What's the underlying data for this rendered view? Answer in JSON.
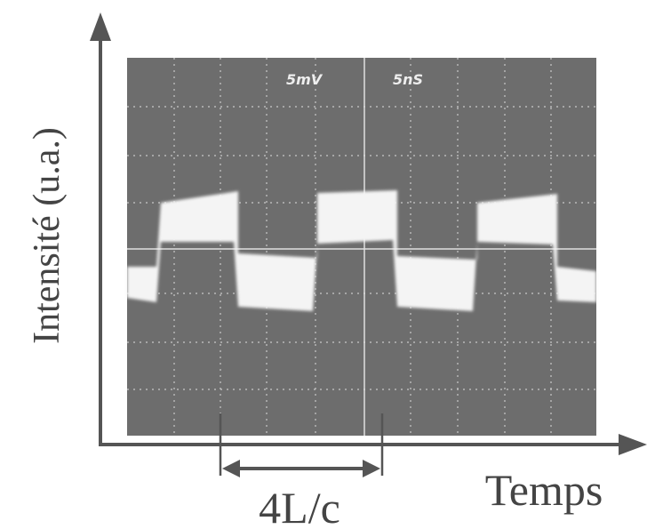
{
  "screen": {
    "volts_per_div": "5mV",
    "time_per_div": "5nS"
  },
  "axes": {
    "y_label": "Intensité (u.a.)",
    "x_label": "Temps"
  },
  "annotation": {
    "label": "4L/c"
  }
}
